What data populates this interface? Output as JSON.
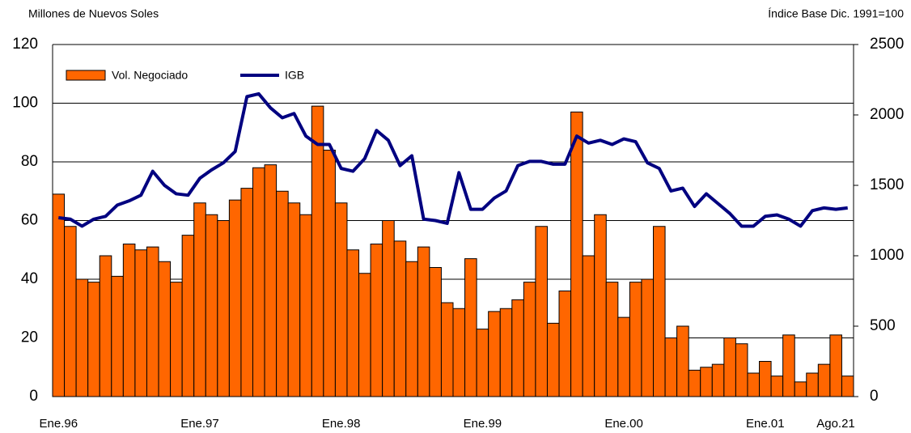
{
  "chart_data": {
    "type": "bar_line",
    "y_label": "Millones de Nuevos Soles",
    "y2_label": "Índice Base Dic. 1991=100",
    "categories": [
      "Ene.96",
      null,
      null,
      null,
      null,
      null,
      null,
      null,
      null,
      null,
      null,
      null,
      "Ene.97",
      null,
      null,
      null,
      null,
      null,
      null,
      null,
      null,
      null,
      null,
      null,
      "Ene.98",
      null,
      null,
      null,
      null,
      null,
      null,
      null,
      null,
      null,
      null,
      null,
      "Ene.99",
      null,
      null,
      null,
      null,
      null,
      null,
      null,
      null,
      null,
      null,
      null,
      "Ene.00",
      null,
      null,
      null,
      null,
      null,
      null,
      null,
      null,
      null,
      null,
      null,
      "Ene.01",
      null,
      null,
      null,
      null,
      null,
      null,
      "Ago.21"
    ],
    "series": [
      {
        "name": "Vol. Negociado",
        "color": "#ff6600",
        "axis": "y",
        "values": [
          69,
          58,
          40,
          39,
          48,
          41,
          52,
          50,
          51,
          46,
          39,
          55,
          66,
          62,
          60,
          67,
          71,
          78,
          79,
          70,
          66,
          62,
          99,
          84,
          66,
          50,
          42,
          52,
          60,
          53,
          46,
          51,
          44,
          32,
          30,
          47,
          23,
          29,
          30,
          33,
          39,
          58,
          25,
          36,
          97,
          48,
          62,
          39,
          27,
          39,
          40,
          58,
          20,
          24,
          9,
          10,
          11,
          20,
          18,
          8,
          12,
          7,
          21,
          5,
          8,
          11,
          21,
          7
        ]
      },
      {
        "name": "IGB",
        "color": "#000080",
        "axis": "y2",
        "values": [
          1270,
          1260,
          1210,
          1260,
          1280,
          1360,
          1390,
          1430,
          1600,
          1500,
          1440,
          1430,
          1550,
          1610,
          1660,
          1740,
          2130,
          2150,
          2050,
          1980,
          2010,
          1850,
          1790,
          1790,
          1620,
          1600,
          1690,
          1890,
          1820,
          1640,
          1710,
          1260,
          1250,
          1230,
          1590,
          1330,
          1330,
          1410,
          1460,
          1640,
          1670,
          1670,
          1650,
          1650,
          1850,
          1800,
          1820,
          1790,
          1830,
          1810,
          1660,
          1620,
          1460,
          1480,
          1350,
          1440,
          1370,
          1300,
          1210,
          1210,
          1280,
          1290,
          1260,
          1210,
          1320,
          1340,
          1330,
          1340
        ]
      }
    ],
    "ylim": [
      0,
      120
    ],
    "yticks": [
      0,
      20,
      40,
      60,
      80,
      100,
      120
    ],
    "y2lim": [
      0,
      2500
    ],
    "y2ticks": [
      0,
      500,
      1000,
      1500,
      2000,
      2500
    ],
    "grid": true,
    "legend": "top-left"
  }
}
